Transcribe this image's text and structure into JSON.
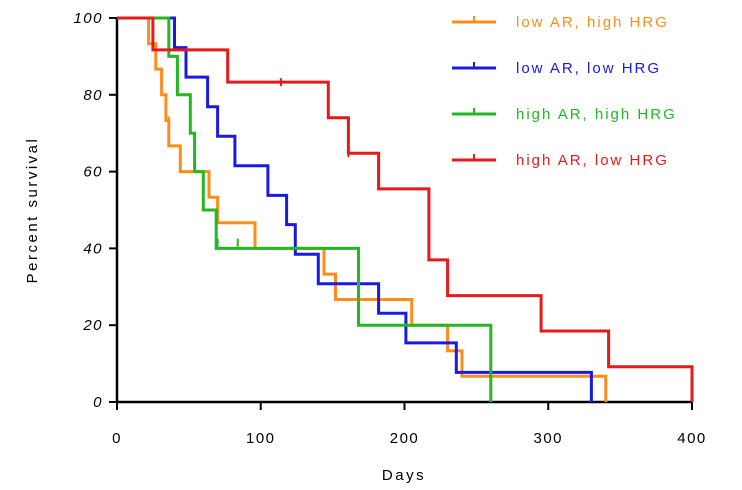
{
  "chart_data": {
    "type": "line",
    "subtype": "kaplan-meier step",
    "xlabel": "Days",
    "ylabel": "Percent survival",
    "xlim": [
      0,
      400
    ],
    "ylim": [
      0,
      100
    ],
    "xticks": [
      "0",
      "100",
      "200",
      "300",
      "400"
    ],
    "yticks": [
      "0",
      "20",
      "40",
      "60",
      "80",
      "100"
    ],
    "grid": false,
    "legend_position": "top-right",
    "series": [
      {
        "name": "low AR, high HRG",
        "color": "#ff8c1a",
        "steps": [
          [
            0,
            100
          ],
          [
            22,
            100
          ],
          [
            22,
            93.3
          ],
          [
            27,
            93.3
          ],
          [
            27,
            86.7
          ],
          [
            31,
            86.7
          ],
          [
            31,
            80
          ],
          [
            34,
            80
          ],
          [
            34,
            73.3
          ],
          [
            36,
            73.3
          ],
          [
            36,
            66.7
          ],
          [
            44,
            66.7
          ],
          [
            44,
            60
          ],
          [
            64,
            60
          ],
          [
            64,
            53.3
          ],
          [
            70,
            53.3
          ],
          [
            70,
            46.7
          ],
          [
            78,
            46.7
          ],
          [
            78,
            46.7
          ],
          [
            96,
            46.7
          ],
          [
            96,
            40
          ],
          [
            144,
            40
          ],
          [
            144,
            33.3
          ],
          [
            152,
            33.3
          ],
          [
            152,
            26.7
          ],
          [
            205,
            26.7
          ],
          [
            205,
            20
          ],
          [
            230,
            20
          ],
          [
            230,
            13.3
          ],
          [
            240,
            13.3
          ],
          [
            240,
            6.7
          ],
          [
            340,
            6.7
          ],
          [
            340,
            0
          ]
        ],
        "censored": [
          [
            36,
            73.3
          ]
        ]
      },
      {
        "name": "low AR, low HRG",
        "color": "#1a1ae6",
        "steps": [
          [
            0,
            100
          ],
          [
            40,
            100
          ],
          [
            40,
            92.3
          ],
          [
            48,
            92.3
          ],
          [
            48,
            84.6
          ],
          [
            63,
            84.6
          ],
          [
            63,
            76.9
          ],
          [
            70,
            76.9
          ],
          [
            70,
            69.2
          ],
          [
            82,
            69.2
          ],
          [
            82,
            61.5
          ],
          [
            105,
            61.5
          ],
          [
            105,
            53.8
          ],
          [
            118,
            53.8
          ],
          [
            118,
            46.2
          ],
          [
            124,
            46.2
          ],
          [
            124,
            38.5
          ],
          [
            140,
            38.5
          ],
          [
            140,
            30.8
          ],
          [
            182,
            30.8
          ],
          [
            182,
            23.1
          ],
          [
            201,
            23.1
          ],
          [
            201,
            15.4
          ],
          [
            236,
            15.4
          ],
          [
            236,
            7.7
          ],
          [
            330,
            7.7
          ],
          [
            330,
            0
          ]
        ],
        "censored": []
      },
      {
        "name": "high AR, high HRG",
        "color": "#22b822",
        "steps": [
          [
            0,
            100
          ],
          [
            36,
            100
          ],
          [
            36,
            90
          ],
          [
            42,
            90
          ],
          [
            42,
            80
          ],
          [
            51,
            80
          ],
          [
            51,
            70
          ],
          [
            54,
            70
          ],
          [
            54,
            60
          ],
          [
            60,
            60
          ],
          [
            60,
            50
          ],
          [
            69,
            50
          ],
          [
            69,
            40
          ],
          [
            168,
            40
          ],
          [
            168,
            20
          ],
          [
            260,
            20
          ],
          [
            260,
            0
          ]
        ],
        "censored": [
          [
            70,
            41.5
          ],
          [
            84,
            41.5
          ]
        ]
      },
      {
        "name": "high AR, low HRG",
        "color": "#e61a1a",
        "steps": [
          [
            0,
            100
          ],
          [
            25,
            100
          ],
          [
            25,
            91.7
          ],
          [
            77,
            91.7
          ],
          [
            77,
            83.3
          ],
          [
            147,
            83.3
          ],
          [
            147,
            74
          ],
          [
            161,
            74
          ],
          [
            161,
            64.8
          ],
          [
            182,
            64.8
          ],
          [
            182,
            55.5
          ],
          [
            217,
            55.5
          ],
          [
            217,
            37
          ],
          [
            230,
            37
          ],
          [
            230,
            27.7
          ],
          [
            295,
            27.7
          ],
          [
            295,
            18.5
          ],
          [
            342,
            18.5
          ],
          [
            342,
            9.2
          ],
          [
            400,
            9.2
          ],
          [
            400,
            0
          ]
        ],
        "censored": [
          [
            114,
            83.3
          ],
          [
            161,
            64.8
          ]
        ]
      }
    ]
  }
}
